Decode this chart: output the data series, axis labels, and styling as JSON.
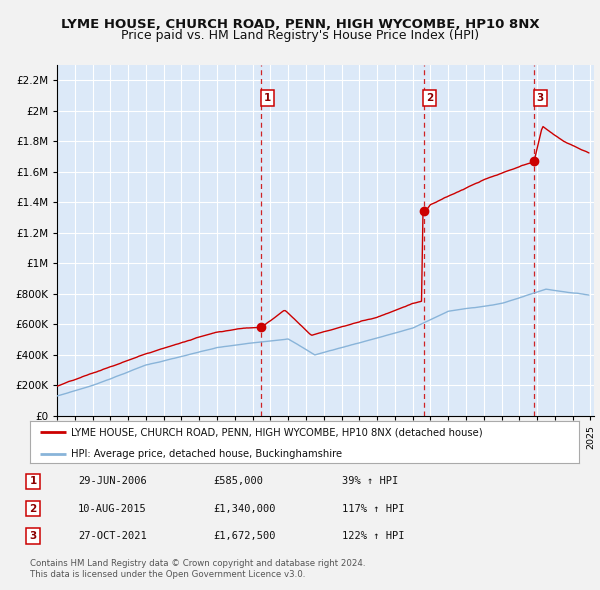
{
  "title": "LYME HOUSE, CHURCH ROAD, PENN, HIGH WYCOMBE, HP10 8NX",
  "subtitle": "Price paid vs. HM Land Registry's House Price Index (HPI)",
  "red_label": "LYME HOUSE, CHURCH ROAD, PENN, HIGH WYCOMBE, HP10 8NX (detached house)",
  "blue_label": "HPI: Average price, detached house, Buckinghamshire",
  "sale1_date": "29-JUN-2006",
  "sale1_price": 585000,
  "sale1_pct": "39%",
  "sale1_yr": 2006.5,
  "sale2_date": "10-AUG-2015",
  "sale2_price": 1340000,
  "sale2_pct": "117%",
  "sale2_yr": 2015.62,
  "sale3_date": "27-OCT-2021",
  "sale3_price": 1672500,
  "sale3_pct": "122%",
  "sale3_yr": 2021.83,
  "footer1": "Contains HM Land Registry data © Crown copyright and database right 2024.",
  "footer2": "This data is licensed under the Open Government Licence v3.0.",
  "ylim_max": 2300000,
  "xlim_min": 1995,
  "xlim_max": 2025.2,
  "fig_bg": "#f2f2f2",
  "plot_bg": "#dce9f8",
  "grid_color": "#ffffff",
  "red_color": "#cc0000",
  "blue_color": "#89b4d9",
  "title_fontsize": 9.5,
  "subtitle_fontsize": 9.0
}
